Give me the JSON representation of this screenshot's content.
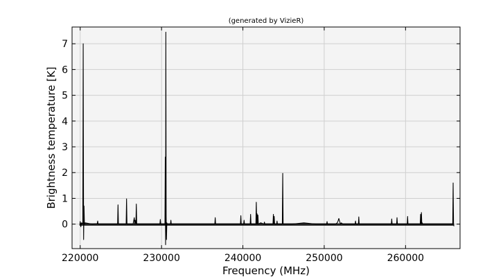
{
  "chart_data": {
    "type": "line",
    "title": "(generated by VizieR)",
    "xlabel": "Frequency (MHz)",
    "ylabel": "Brightness temperature [K]",
    "xlim": [
      219000,
      266700
    ],
    "ylim": [
      -0.95,
      7.65
    ],
    "xticks": [
      220000,
      230000,
      240000,
      250000,
      260000
    ],
    "yticks": [
      0,
      1,
      2,
      3,
      4,
      5,
      6,
      7
    ],
    "grid": true,
    "background": "#f4f4f4",
    "line_color": "#000000",
    "series": [
      {
        "x": [
          219950,
          220000,
          220080,
          220150,
          220320,
          220370,
          220420,
          220470,
          220520,
          220600,
          221500,
          222100,
          222150,
          222200,
          223500,
          224600,
          224650,
          224700,
          225200,
          225650,
          225700,
          225750,
          226300,
          226500,
          226650,
          226700,
          226750,
          226850,
          226900,
          226950,
          228000,
          229800,
          229850,
          229900,
          230420,
          230460,
          230500,
          230530,
          230570,
          230610,
          230650,
          230700,
          231100,
          231150,
          231200,
          233000,
          235000,
          236550,
          236600,
          236650,
          238000,
          239700,
          239750,
          239800,
          240100,
          240150,
          240200,
          240900,
          240950,
          241000,
          241300,
          241600,
          241650,
          241700,
          241750,
          241800,
          241850,
          241900,
          242200,
          242600,
          242650,
          242700,
          243700,
          243750,
          243800,
          243850,
          243900,
          244150,
          244200,
          244250,
          244800,
          244850,
          244900,
          244950,
          245000,
          246000,
          247500,
          249000,
          250300,
          250350,
          250400,
          251400,
          251600,
          251700,
          251800,
          251900,
          252000,
          252100,
          252300,
          253800,
          253850,
          253900,
          254200,
          254250,
          254300,
          255000,
          256500,
          258000,
          258250,
          258300,
          258350,
          258900,
          258950,
          259000,
          259800,
          260200,
          260250,
          260300,
          261500,
          261800,
          261850,
          261900,
          261950,
          262000,
          262050,
          262100,
          263000,
          264000,
          265000,
          265800,
          265850,
          265900,
          265950
        ],
        "values": [
          -0.05,
          0.1,
          -0.1,
          0.05,
          0.02,
          7.0,
          -0.6,
          0.7,
          0.0,
          0.05,
          0.0,
          0.02,
          0.12,
          0.0,
          0.0,
          0.0,
          0.75,
          0.0,
          0.0,
          0.0,
          0.98,
          0.0,
          0.0,
          0.0,
          0.25,
          0.0,
          0.15,
          0.0,
          0.78,
          0.0,
          0.0,
          0.0,
          0.18,
          0.0,
          0.0,
          2.6,
          -0.8,
          7.45,
          0.3,
          -0.6,
          0.05,
          0.0,
          0.0,
          0.15,
          0.0,
          0.0,
          0.0,
          0.0,
          0.25,
          0.0,
          0.0,
          0.0,
          0.33,
          0.0,
          0.0,
          0.15,
          0.0,
          0.0,
          0.38,
          0.0,
          0.0,
          0.0,
          0.85,
          0.0,
          0.4,
          0.0,
          0.35,
          0.0,
          0.05,
          0.0,
          0.08,
          0.0,
          0.0,
          0.38,
          0.0,
          0.3,
          0.0,
          0.0,
          0.12,
          0.0,
          0.0,
          0.02,
          1.97,
          0.0,
          0.0,
          0.0,
          0.05,
          0.0,
          0.0,
          0.1,
          0.0,
          0.0,
          0.05,
          0.12,
          0.22,
          0.1,
          0.0,
          0.05,
          0.0,
          0.0,
          0.12,
          0.0,
          0.0,
          0.28,
          0.0,
          0.0,
          0.0,
          0.0,
          0.0,
          0.2,
          0.0,
          0.0,
          0.25,
          0.0,
          0.0,
          0.0,
          0.3,
          0.0,
          0.0,
          0.0,
          0.38,
          0.0,
          0.45,
          0.0,
          0.05,
          0.0,
          0.0,
          0.0,
          0.0,
          0.0,
          1.6,
          0.0,
          -0.08
        ]
      }
    ]
  }
}
